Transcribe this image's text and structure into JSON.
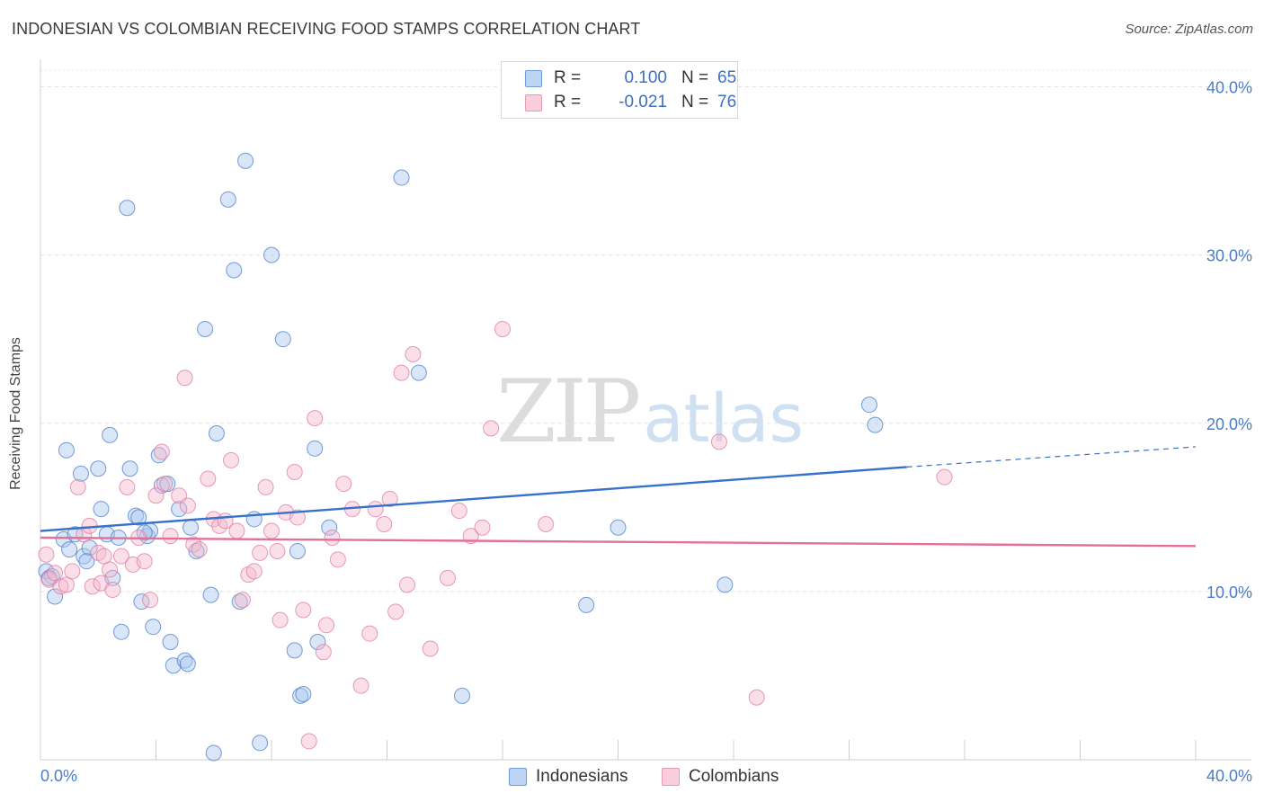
{
  "title": "INDONESIAN VS COLOMBIAN RECEIVING FOOD STAMPS CORRELATION CHART",
  "source": "Source: ZipAtlas.com",
  "watermark": {
    "zip": "ZIP",
    "atlas": "atlas"
  },
  "legend": {
    "rows": [
      {
        "r_label": "R =",
        "r_value": "0.100",
        "n_label": "N =",
        "n_value": "65",
        "color": "#a9c8ef"
      },
      {
        "r_label": "R =",
        "r_value": "-0.021",
        "n_label": "N =",
        "n_value": "76",
        "color": "#f6b8cc"
      }
    ]
  },
  "bottom_legend": [
    {
      "label": "Indonesians",
      "color": "#a9c8ef"
    },
    {
      "label": "Colombians",
      "color": "#f6b8cc"
    }
  ],
  "chart_data": {
    "type": "scatter",
    "xlabel": "",
    "ylabel": "Receiving Food Stamps",
    "xlim": [
      0,
      40
    ],
    "ylim": [
      0,
      40
    ],
    "x_tick_labels": [
      {
        "value": 0,
        "label": "0.0%"
      },
      {
        "value": 40,
        "label": "40.0%"
      }
    ],
    "y_tick_labels": [
      {
        "value": 10,
        "label": "10.0%"
      },
      {
        "value": 20,
        "label": "20.0%"
      },
      {
        "value": 30,
        "label": "30.0%"
      },
      {
        "value": 40,
        "label": "40.0%"
      }
    ],
    "grid": true,
    "series": [
      {
        "name": "Indonesians",
        "color": "#4a7cc9",
        "fill": "#a9c8ef",
        "trend": {
          "x0": 0,
          "y0": 13.6,
          "x1": 30.0,
          "y1": 17.4,
          "dash_to_x": 40,
          "dash_to_y": 18.6
        },
        "points": [
          [
            0.2,
            11.2
          ],
          [
            0.4,
            10.9
          ],
          [
            0.5,
            9.7
          ],
          [
            0.8,
            13.1
          ],
          [
            0.9,
            18.4
          ],
          [
            1.0,
            12.5
          ],
          [
            1.2,
            13.4
          ],
          [
            1.4,
            17.0
          ],
          [
            1.5,
            12.1
          ],
          [
            1.7,
            12.6
          ],
          [
            2.0,
            17.3
          ],
          [
            2.1,
            14.9
          ],
          [
            2.3,
            13.4
          ],
          [
            2.4,
            19.3
          ],
          [
            2.5,
            10.8
          ],
          [
            2.7,
            13.2
          ],
          [
            2.8,
            7.6
          ],
          [
            3.0,
            32.8
          ],
          [
            3.1,
            17.3
          ],
          [
            3.3,
            14.5
          ],
          [
            3.4,
            14.4
          ],
          [
            3.5,
            9.4
          ],
          [
            3.7,
            13.3
          ],
          [
            3.8,
            13.6
          ],
          [
            3.9,
            7.9
          ],
          [
            4.1,
            18.1
          ],
          [
            4.2,
            16.3
          ],
          [
            4.4,
            16.4
          ],
          [
            4.5,
            7.0
          ],
          [
            4.6,
            5.6
          ],
          [
            4.8,
            14.9
          ],
          [
            5.0,
            5.9
          ],
          [
            5.1,
            5.7
          ],
          [
            5.2,
            13.8
          ],
          [
            5.4,
            12.4
          ],
          [
            5.7,
            25.6
          ],
          [
            5.9,
            9.8
          ],
          [
            6.0,
            0.4
          ],
          [
            6.1,
            19.4
          ],
          [
            6.5,
            33.3
          ],
          [
            6.7,
            29.1
          ],
          [
            6.9,
            9.4
          ],
          [
            7.1,
            35.6
          ],
          [
            7.4,
            14.3
          ],
          [
            7.6,
            1.0
          ],
          [
            8.0,
            30.0
          ],
          [
            8.4,
            25.0
          ],
          [
            8.8,
            6.5
          ],
          [
            8.9,
            12.4
          ],
          [
            9.0,
            3.8
          ],
          [
            9.1,
            3.9
          ],
          [
            9.5,
            18.5
          ],
          [
            9.6,
            7.0
          ],
          [
            10.0,
            13.8
          ],
          [
            12.5,
            34.6
          ],
          [
            13.1,
            23.0
          ],
          [
            14.6,
            3.8
          ],
          [
            18.9,
            9.2
          ],
          [
            20.0,
            13.8
          ],
          [
            23.7,
            10.4
          ],
          [
            28.7,
            21.1
          ],
          [
            28.9,
            19.9
          ],
          [
            0.3,
            10.8
          ],
          [
            1.6,
            11.8
          ],
          [
            3.6,
            13.5
          ]
        ]
      },
      {
        "name": "Colombians",
        "color": "#e07aa0",
        "fill": "#f6b8cc",
        "trend": {
          "x0": 0,
          "y0": 13.2,
          "x1": 40,
          "y1": 12.7
        },
        "points": [
          [
            0.2,
            12.2
          ],
          [
            0.3,
            10.7
          ],
          [
            0.5,
            11.1
          ],
          [
            0.7,
            10.3
          ],
          [
            0.9,
            10.4
          ],
          [
            1.1,
            11.2
          ],
          [
            1.3,
            16.2
          ],
          [
            1.5,
            13.4
          ],
          [
            1.7,
            13.9
          ],
          [
            1.8,
            10.3
          ],
          [
            2.0,
            12.3
          ],
          [
            2.1,
            10.5
          ],
          [
            2.2,
            12.1
          ],
          [
            2.4,
            11.3
          ],
          [
            2.5,
            10.1
          ],
          [
            2.8,
            12.1
          ],
          [
            3.0,
            16.2
          ],
          [
            3.2,
            11.6
          ],
          [
            3.4,
            13.2
          ],
          [
            3.6,
            11.8
          ],
          [
            3.8,
            9.5
          ],
          [
            4.0,
            15.7
          ],
          [
            4.2,
            18.3
          ],
          [
            4.3,
            16.4
          ],
          [
            4.5,
            13.3
          ],
          [
            4.8,
            15.7
          ],
          [
            5.0,
            22.7
          ],
          [
            5.1,
            15.1
          ],
          [
            5.3,
            12.8
          ],
          [
            5.5,
            12.5
          ],
          [
            5.8,
            16.7
          ],
          [
            6.0,
            14.3
          ],
          [
            6.2,
            13.9
          ],
          [
            6.4,
            14.2
          ],
          [
            6.6,
            17.8
          ],
          [
            6.8,
            13.6
          ],
          [
            7.0,
            9.5
          ],
          [
            7.2,
            11.0
          ],
          [
            7.4,
            11.2
          ],
          [
            7.6,
            12.3
          ],
          [
            7.8,
            16.2
          ],
          [
            8.0,
            13.6
          ],
          [
            8.2,
            12.4
          ],
          [
            8.3,
            8.3
          ],
          [
            8.5,
            14.7
          ],
          [
            8.8,
            17.1
          ],
          [
            8.9,
            14.4
          ],
          [
            9.1,
            8.9
          ],
          [
            9.3,
            1.1
          ],
          [
            9.5,
            20.3
          ],
          [
            9.8,
            6.4
          ],
          [
            9.9,
            8.0
          ],
          [
            10.1,
            13.2
          ],
          [
            10.3,
            11.9
          ],
          [
            10.5,
            16.4
          ],
          [
            10.8,
            14.9
          ],
          [
            11.1,
            4.4
          ],
          [
            11.4,
            7.5
          ],
          [
            11.6,
            14.9
          ],
          [
            11.9,
            14.0
          ],
          [
            12.1,
            15.5
          ],
          [
            12.3,
            8.8
          ],
          [
            12.5,
            23.0
          ],
          [
            12.7,
            10.4
          ],
          [
            12.9,
            24.1
          ],
          [
            13.5,
            6.6
          ],
          [
            14.1,
            10.8
          ],
          [
            14.5,
            14.8
          ],
          [
            14.9,
            13.3
          ],
          [
            15.3,
            13.8
          ],
          [
            15.6,
            19.7
          ],
          [
            16.0,
            25.6
          ],
          [
            17.5,
            14.0
          ],
          [
            23.5,
            18.9
          ],
          [
            24.8,
            3.7
          ],
          [
            31.3,
            16.8
          ]
        ]
      }
    ]
  }
}
